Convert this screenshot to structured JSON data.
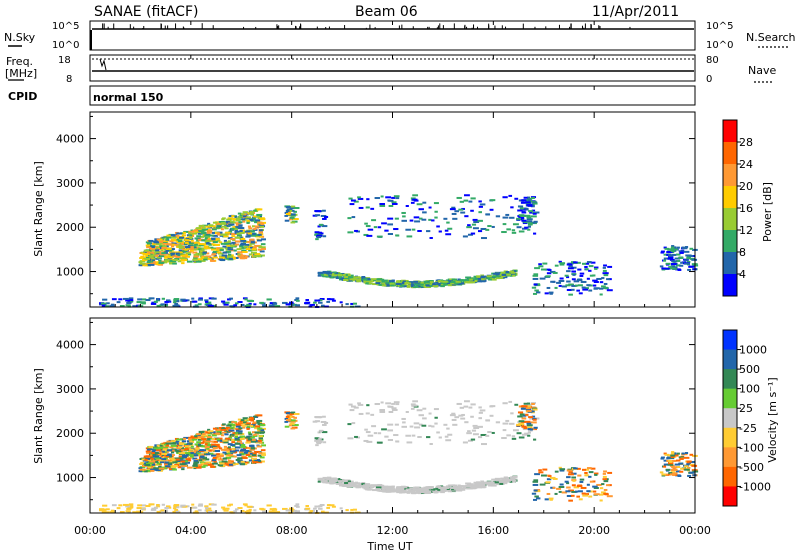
{
  "header": {
    "station": "SANAE (fitACF)",
    "beam": "Beam 06",
    "date": "11/Apr/2011"
  },
  "top_panels": {
    "nsky_label": "N.Sky",
    "nsearch_label": "N.Search",
    "freq_label_1": "Freq.",
    "freq_label_2": "[MHz]",
    "nave_label": "Nave",
    "cpid_label": "CPID",
    "cpid_value": "normal 150",
    "nsky_ticks": [
      "10^5",
      "10^0"
    ],
    "nsearch_ticks": [
      "10^5",
      "10^0"
    ],
    "freq_ticks": [
      "18",
      "8"
    ],
    "nave_ticks": [
      "80",
      "0"
    ]
  },
  "chart_data": [
    {
      "type": "heatmap",
      "name": "power",
      "ylabel": "Slant Range [km]",
      "ylim": [
        200,
        4600
      ],
      "xlim": [
        0,
        24
      ],
      "yticks": [
        "4000",
        "3000",
        "2000",
        "1000"
      ],
      "colorbar": {
        "label": "Power [dB]",
        "ticks": [
          "28",
          "24",
          "20",
          "16",
          "12",
          "8",
          "4"
        ],
        "colors": [
          "#ff0000",
          "#ff6600",
          "#ff9933",
          "#ffcc00",
          "#99cc33",
          "#33aa66",
          "#2266aa",
          "#0000ff"
        ]
      }
    },
    {
      "type": "heatmap",
      "name": "velocity",
      "xlabel": "Time UT",
      "ylabel": "Slant Range [km]",
      "ylim": [
        200,
        4600
      ],
      "xlim": [
        0,
        24
      ],
      "xticks": [
        "00:00",
        "04:00",
        "08:00",
        "12:00",
        "16:00",
        "20:00",
        "00:00"
      ],
      "yticks": [
        "4000",
        "3000",
        "2000",
        "1000"
      ],
      "colorbar": {
        "label": "Velocity [m s⁻¹]",
        "ticks": [
          "1000",
          "500",
          "100",
          "25",
          "-25",
          "-100",
          "-500",
          "-1000"
        ],
        "colors": [
          "#0033ff",
          "#2266aa",
          "#338855",
          "#66cc33",
          "#c8c8c8",
          "#ffcc33",
          "#ff9933",
          "#ff6600",
          "#ff0000"
        ]
      }
    }
  ],
  "colors": {
    "ground": "#c8c8c8",
    "panel_border": "#000000"
  }
}
